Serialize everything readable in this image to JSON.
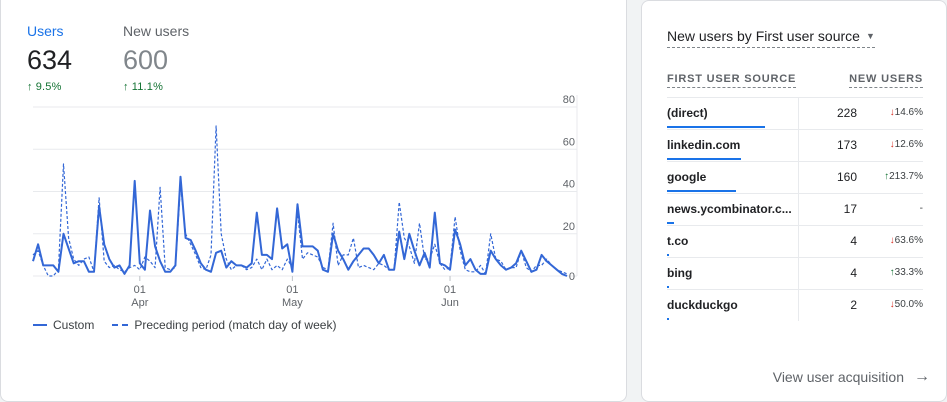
{
  "metrics": [
    {
      "label": "Users",
      "value": "634",
      "change": "9.5%",
      "arrow": "up"
    },
    {
      "label": "New users",
      "value": "600",
      "change": "11.1%",
      "arrow": "up"
    }
  ],
  "chart_data": {
    "type": "line",
    "ylim": [
      0,
      80
    ],
    "y_ticks": [
      {
        "label": "80",
        "value": 80
      },
      {
        "label": "60",
        "value": 60
      },
      {
        "label": "40",
        "value": 40
      },
      {
        "label": "20",
        "value": 20
      },
      {
        "label": "0",
        "value": 0
      }
    ],
    "x_ticks": [
      {
        "day": "01",
        "month": "Apr",
        "index": 21
      },
      {
        "day": "01",
        "month": "May",
        "index": 51
      },
      {
        "day": "01",
        "month": "Jun",
        "index": 82
      }
    ],
    "series": [
      {
        "name": "Custom",
        "style": "solid",
        "color": "#3367d6",
        "values": [
          7,
          15,
          5,
          5,
          5,
          2,
          20,
          13,
          6,
          7,
          7,
          2,
          2,
          33,
          15,
          8,
          4,
          5,
          1,
          5,
          45,
          6,
          3,
          31,
          14,
          7,
          2,
          2,
          5,
          47,
          18,
          17,
          12,
          6,
          3,
          2,
          11,
          12,
          4,
          7,
          5,
          5,
          4,
          6,
          30,
          10,
          10,
          8,
          32,
          13,
          15,
          2,
          34,
          14,
          14,
          14,
          12,
          3,
          2,
          20,
          12,
          8,
          3,
          7,
          10,
          13,
          13,
          10,
          6,
          10,
          3,
          3,
          21,
          8,
          20,
          12,
          5,
          11,
          4,
          30,
          6,
          5,
          3,
          22,
          15,
          5,
          8,
          3,
          1,
          1,
          12,
          8,
          5,
          3,
          4,
          6,
          12,
          7,
          2,
          3,
          10,
          7,
          5,
          3,
          1,
          0
        ]
      },
      {
        "name": "Preceding period (match day of week)",
        "style": "dashed",
        "color": "#3367d6",
        "values": [
          10,
          12,
          5,
          0,
          0,
          3,
          53,
          18,
          8,
          5,
          8,
          9,
          2,
          37,
          7,
          4,
          5,
          3,
          2,
          4,
          5,
          3,
          9,
          7,
          4,
          42,
          4,
          3,
          4,
          43,
          20,
          15,
          10,
          4,
          3,
          10,
          71,
          20,
          8,
          3,
          5,
          5,
          3,
          4,
          8,
          3,
          8,
          3,
          5,
          3,
          8,
          4,
          30,
          8,
          11,
          10,
          9,
          4,
          3,
          25,
          5,
          10,
          10,
          18,
          4,
          5,
          4,
          3,
          6,
          5,
          3,
          3,
          35,
          18,
          14,
          6,
          25,
          8,
          8,
          15,
          6,
          3,
          4,
          28,
          12,
          3,
          2,
          2,
          5,
          1,
          20,
          8,
          7,
          3,
          4,
          4,
          12,
          4,
          2,
          5,
          5,
          8,
          5,
          3,
          2,
          1
        ]
      }
    ]
  },
  "right_card": {
    "title": "New users by First user source",
    "col_source": "FIRST USER SOURCE",
    "col_value": "NEW USERS",
    "rows": [
      {
        "source": "(direct)",
        "value": "228",
        "change": "14.6%",
        "dir": "down",
        "fraction": 1.0
      },
      {
        "source": "linkedin.com",
        "value": "173",
        "change": "12.6%",
        "dir": "down",
        "fraction": 0.76
      },
      {
        "source": "google",
        "value": "160",
        "change": "213.7%",
        "dir": "up",
        "fraction": 0.7
      },
      {
        "source": "news.ycombinator.c...",
        "value": "17",
        "change": "-",
        "dir": "none",
        "fraction": 0.075
      },
      {
        "source": "t.co",
        "value": "4",
        "change": "63.6%",
        "dir": "down",
        "fraction": 0.018
      },
      {
        "source": "bing",
        "value": "4",
        "change": "33.3%",
        "dir": "up",
        "fraction": 0.018
      },
      {
        "source": "duckduckgo",
        "value": "2",
        "change": "50.0%",
        "dir": "down",
        "fraction": 0.009
      }
    ],
    "footer_link": "View user acquisition",
    "footer_icon": "arrow-right-icon"
  },
  "icons": {
    "up": "↑",
    "down": "↓",
    "caret": "▼",
    "arrow_right": "→"
  }
}
